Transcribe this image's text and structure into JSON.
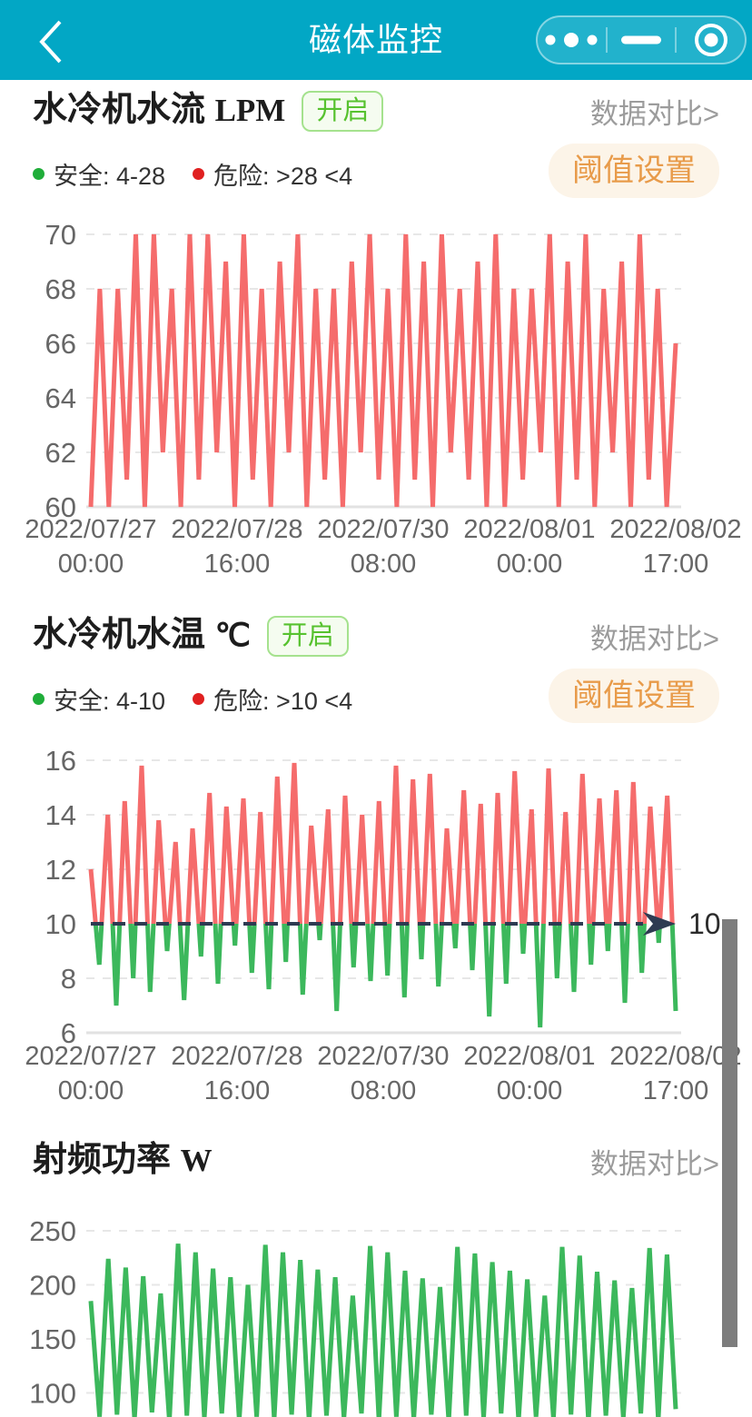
{
  "header": {
    "title": "磁体监控",
    "bg_color": "#02a7c5",
    "back_icon": "chevron-left",
    "capsule": {
      "more_icon": "three-dots",
      "minimize_icon": "minus",
      "close_icon": "target-circle"
    }
  },
  "sections": [
    {
      "title": "水冷机水流",
      "unit": "LPM",
      "status_badge": "开启",
      "compare_link": "数据对比>",
      "legend": [
        {
          "label": "安全: 4-28",
          "color": "#1fad39"
        },
        {
          "label": "危险: >28 <4",
          "color": "#e02020"
        }
      ],
      "threshold_button": "阈值设置"
    },
    {
      "title": "水冷机水温",
      "unit": "℃",
      "status_badge": "开启",
      "compare_link": "数据对比>",
      "legend": [
        {
          "label": "安全: 4-10",
          "color": "#1fad39"
        },
        {
          "label": "危险: >10 <4",
          "color": "#e02020"
        }
      ],
      "threshold_button": "阈值设置"
    },
    {
      "title": "射频功率",
      "unit": "W",
      "compare_link": "数据对比>"
    }
  ],
  "colors": {
    "accent_teal": "#02a7c5",
    "line_red": "#f56c6c",
    "line_green": "#3cb85c",
    "threshold_navy": "#2e3b52",
    "orange_button_text": "#e89b4a",
    "orange_button_bg": "#fcf4e8",
    "badge_green": "#57c22f",
    "grid": "#e7e7e7",
    "axis_text": "#666666",
    "link_gray": "#9c9c9c",
    "scrollbar": "#7d7d7d"
  },
  "chart_data": [
    {
      "type": "line",
      "title": "水冷机水流 LPM",
      "xlabel": "",
      "ylabel": "LPM",
      "ylim": [
        60,
        70
      ],
      "y_ticks": [
        70,
        68,
        66,
        64,
        62,
        60
      ],
      "x_ticks": [
        [
          "2022/07/27",
          "00:00"
        ],
        [
          "2022/07/28",
          "16:00"
        ],
        [
          "2022/07/30",
          "08:00"
        ],
        [
          "2022/08/01",
          "00:00"
        ],
        [
          "2022/08/02",
          "17:00"
        ]
      ],
      "grid": "dashed",
      "legend_position": "none",
      "series": [
        {
          "name": "水冷机水流",
          "color": "#f56c6c",
          "values": [
            60,
            68,
            60,
            68,
            61,
            70,
            60,
            70,
            62,
            68,
            60,
            70,
            61,
            70,
            62,
            69,
            60,
            70,
            61,
            68,
            60,
            69,
            62,
            70,
            60,
            68,
            61,
            68,
            60,
            69,
            62,
            70,
            61,
            68,
            60,
            70,
            61,
            69,
            60,
            70,
            62,
            68,
            61,
            69,
            60,
            70,
            60,
            68,
            61,
            68,
            62,
            70,
            60,
            69,
            61,
            70,
            60,
            68,
            62,
            69,
            60,
            70,
            61,
            68,
            60,
            66
          ]
        }
      ]
    },
    {
      "type": "line",
      "title": "水冷机水温 ℃",
      "xlabel": "",
      "ylabel": "℃",
      "ylim": [
        6,
        16
      ],
      "y_ticks": [
        16,
        14,
        12,
        10,
        8,
        6
      ],
      "x_ticks": [
        [
          "2022/07/27",
          "00:00"
        ],
        [
          "2022/07/28",
          "16:00"
        ],
        [
          "2022/07/30",
          "08:00"
        ],
        [
          "2022/08/01",
          "00:00"
        ],
        [
          "2022/08/02",
          "17:00"
        ]
      ],
      "grid": "dashed",
      "threshold": {
        "value": 10,
        "label": "10",
        "color": "#2e3b52"
      },
      "series": [
        {
          "name": "水冷机水温",
          "color_above": "#f56c6c",
          "color_below": "#3cb85c",
          "values": [
            12,
            8.5,
            14,
            7,
            14.5,
            8,
            15.8,
            7.5,
            13.8,
            9,
            13,
            7.2,
            13.5,
            8.8,
            14.8,
            7.8,
            14.3,
            9.2,
            14.6,
            8.2,
            14.1,
            7.6,
            15.4,
            8.6,
            15.9,
            7.4,
            13.6,
            9.4,
            14.2,
            6.8,
            14.7,
            8.4,
            14,
            7.9,
            14.5,
            8.1,
            15.8,
            7.3,
            15.3,
            8.7,
            15.5,
            7.7,
            13.5,
            9.1,
            14.9,
            8.3,
            14.4,
            6.6,
            14.8,
            7.8,
            15.6,
            8.9,
            14.2,
            6.2,
            15.7,
            8,
            14.1,
            7.5,
            15.5,
            8.5,
            14.6,
            9,
            14.9,
            7.1,
            15.2,
            8.2,
            14.3,
            9.3,
            14.7,
            6.8
          ]
        }
      ]
    },
    {
      "type": "line",
      "title": "射频功率 W",
      "xlabel": "",
      "ylabel": "W",
      "ylim": [
        50,
        250
      ],
      "y_ticks": [
        250,
        200,
        150,
        100
      ],
      "x_ticks": [],
      "grid": "dashed",
      "series": [
        {
          "name": "射频功率",
          "color": "#3cb85c",
          "values": [
            185,
            78,
            224,
            80,
            216,
            76,
            208,
            82,
            192,
            74,
            238,
            79,
            230,
            77,
            215,
            81,
            207,
            75,
            200,
            78,
            237,
            76,
            230,
            80,
            223,
            74,
            214,
            79,
            207,
            77,
            190,
            81,
            236,
            75,
            230,
            78,
            213,
            76,
            206,
            80,
            198,
            74,
            235,
            79,
            229,
            77,
            221,
            81,
            213,
            75,
            205,
            78,
            190,
            76,
            235,
            80,
            227,
            74,
            212,
            79,
            204,
            77,
            197,
            81,
            234,
            75,
            228,
            85
          ]
        }
      ]
    }
  ]
}
